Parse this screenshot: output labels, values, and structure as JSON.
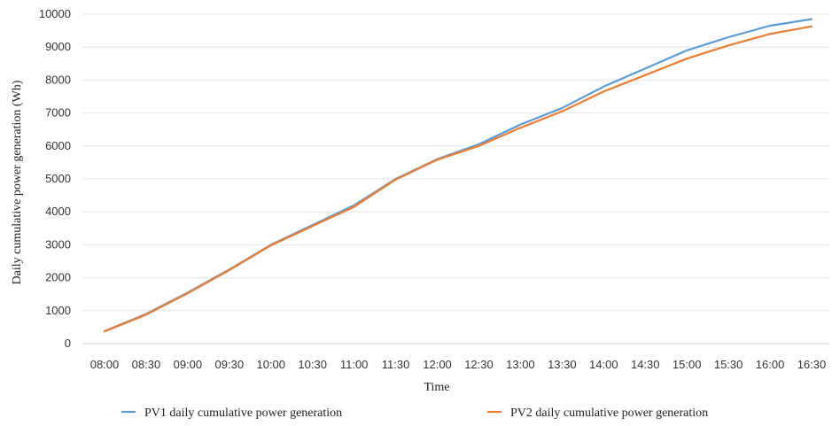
{
  "chart_data": {
    "type": "line",
    "title": "",
    "xlabel": "Time",
    "ylabel": "Daily cumulative power generation (Wh)",
    "ylim": [
      0,
      10000
    ],
    "yticks": [
      0,
      1000,
      2000,
      3000,
      4000,
      5000,
      6000,
      7000,
      8000,
      9000,
      10000
    ],
    "grid": true,
    "legend_position": "bottom",
    "categories": [
      "08:00",
      "08:30",
      "09:00",
      "09:30",
      "10:00",
      "10:30",
      "11:00",
      "11:30",
      "12:00",
      "12:30",
      "13:00",
      "13:30",
      "14:00",
      "14:30",
      "15:00",
      "15:30",
      "16:00",
      "16:30"
    ],
    "series": [
      {
        "name": "PV1 daily cumulative power generation",
        "color": "#5b9bd5",
        "values": [
          380,
          900,
          1550,
          2250,
          3000,
          3600,
          4200,
          5000,
          5600,
          6050,
          6650,
          7150,
          7800,
          8350,
          8900,
          9300,
          9650,
          9850
        ]
      },
      {
        "name": "PV2 daily cumulative power generation",
        "color": "#ed7d31",
        "values": [
          370,
          880,
          1530,
          2230,
          2980,
          3570,
          4150,
          4980,
          5580,
          6000,
          6550,
          7050,
          7650,
          8150,
          8650,
          9050,
          9400,
          9630
        ]
      }
    ]
  }
}
